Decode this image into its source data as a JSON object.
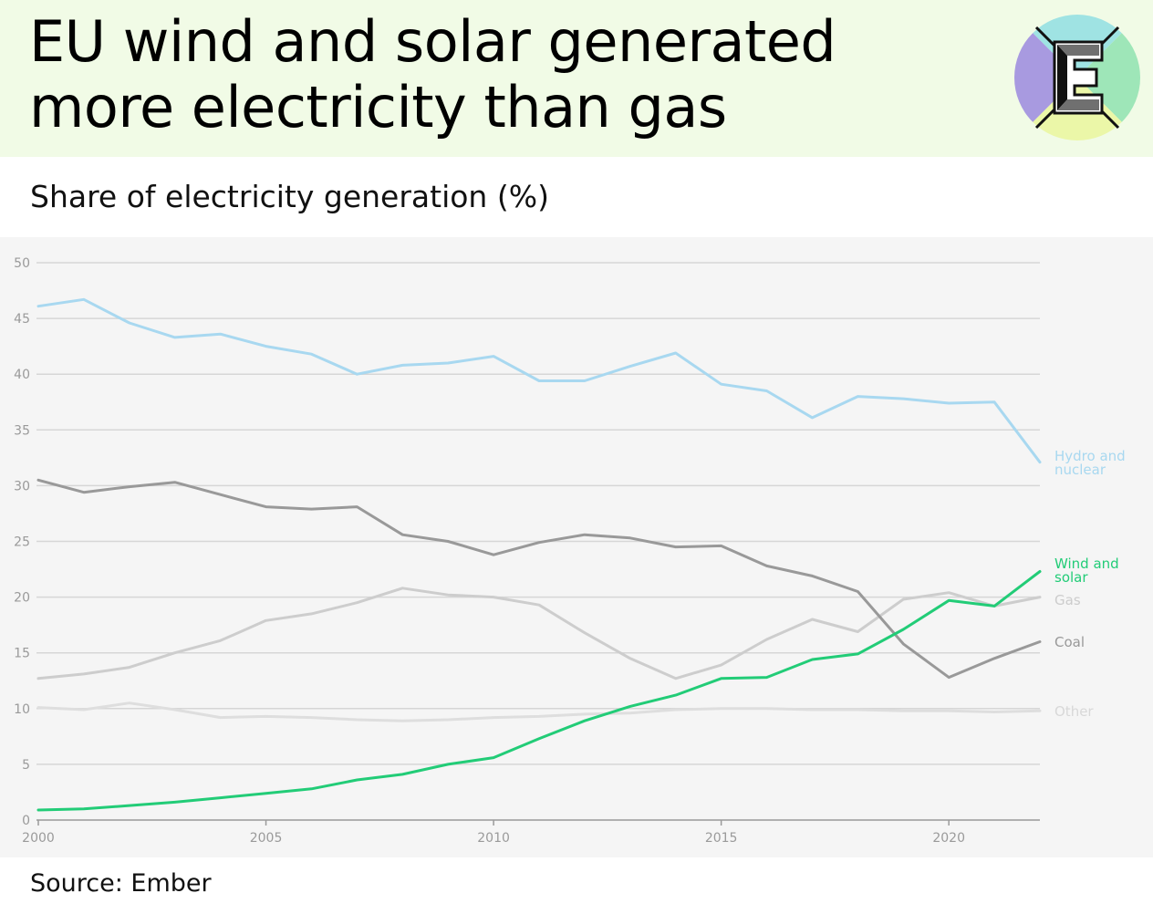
{
  "header": {
    "title": "EU wind and solar generated more electricity than gas",
    "subtitle": "Share of electricity generation (%)",
    "logo_letter": "E"
  },
  "footer": {
    "source": "Source: Ember"
  },
  "colors": {
    "header_bg": "#f1fbe6",
    "plot_bg": "#f5f5f5",
    "hydro_nuclear": "#a8d8f0",
    "coal": "#999999",
    "gas": "#cdcdcd",
    "other": "#dedede",
    "wind_solar": "#22cc77",
    "logo_top": "#9fe3e3",
    "logo_right": "#9ee6b8",
    "logo_bottom": "#ebf7a8",
    "logo_left": "#a89ae0"
  },
  "chart_data": {
    "type": "line",
    "title": "",
    "xlabel": "",
    "ylabel": "",
    "xlim": [
      2000,
      2022
    ],
    "ylim": [
      0,
      50
    ],
    "x_ticks": [
      "2000",
      "2005",
      "2010",
      "2015",
      "2020"
    ],
    "y_ticks": [
      "0",
      "5",
      "10",
      "15",
      "20",
      "25",
      "30",
      "35",
      "40",
      "45",
      "50"
    ],
    "grid": "horizontal",
    "legend": "direct labels at right end of lines",
    "x": [
      2000,
      2001,
      2002,
      2003,
      2004,
      2005,
      2006,
      2007,
      2008,
      2009,
      2010,
      2011,
      2012,
      2013,
      2014,
      2015,
      2016,
      2017,
      2018,
      2019,
      2020,
      2021,
      2022
    ],
    "series": [
      {
        "name": "Hydro and nuclear",
        "label_lines": [
          "Hydro and",
          "nuclear"
        ],
        "color_key": "hydro_nuclear",
        "values": [
          46.1,
          46.7,
          44.6,
          43.3,
          43.6,
          42.5,
          41.8,
          40.0,
          40.8,
          41.0,
          41.6,
          39.4,
          39.4,
          40.7,
          41.9,
          39.1,
          38.5,
          36.1,
          38.0,
          37.8,
          37.4,
          37.5,
          32.1
        ]
      },
      {
        "name": "Coal",
        "label_lines": [
          "Coal"
        ],
        "color_key": "coal",
        "values": [
          30.5,
          29.4,
          29.9,
          30.3,
          29.2,
          28.1,
          27.9,
          28.1,
          25.6,
          25.0,
          23.8,
          24.9,
          25.6,
          25.3,
          24.5,
          24.6,
          22.8,
          21.9,
          20.5,
          15.8,
          12.8,
          14.5,
          16.0
        ]
      },
      {
        "name": "Gas",
        "label_lines": [
          "Gas"
        ],
        "color_key": "gas",
        "values": [
          12.7,
          13.1,
          13.7,
          15.0,
          16.1,
          17.9,
          18.5,
          19.5,
          20.8,
          20.2,
          20.0,
          19.3,
          16.8,
          14.5,
          12.7,
          13.9,
          16.2,
          18.0,
          16.9,
          19.8,
          20.4,
          19.2,
          20.0
        ]
      },
      {
        "name": "Other",
        "label_lines": [
          "Other"
        ],
        "color_key": "other",
        "values": [
          10.1,
          9.9,
          10.5,
          9.9,
          9.2,
          9.3,
          9.2,
          9.0,
          8.9,
          9.0,
          9.2,
          9.3,
          9.5,
          9.6,
          9.9,
          10.0,
          10.0,
          9.9,
          9.9,
          9.8,
          9.8,
          9.7,
          9.8
        ]
      },
      {
        "name": "Wind and solar",
        "label_lines": [
          "Wind and",
          "solar"
        ],
        "color_key": "wind_solar",
        "values": [
          0.9,
          1.0,
          1.3,
          1.6,
          2.0,
          2.4,
          2.8,
          3.6,
          4.1,
          5.0,
          5.6,
          7.3,
          8.9,
          10.2,
          11.2,
          12.7,
          12.8,
          14.4,
          14.9,
          17.1,
          19.7,
          19.2,
          22.3
        ]
      }
    ]
  }
}
